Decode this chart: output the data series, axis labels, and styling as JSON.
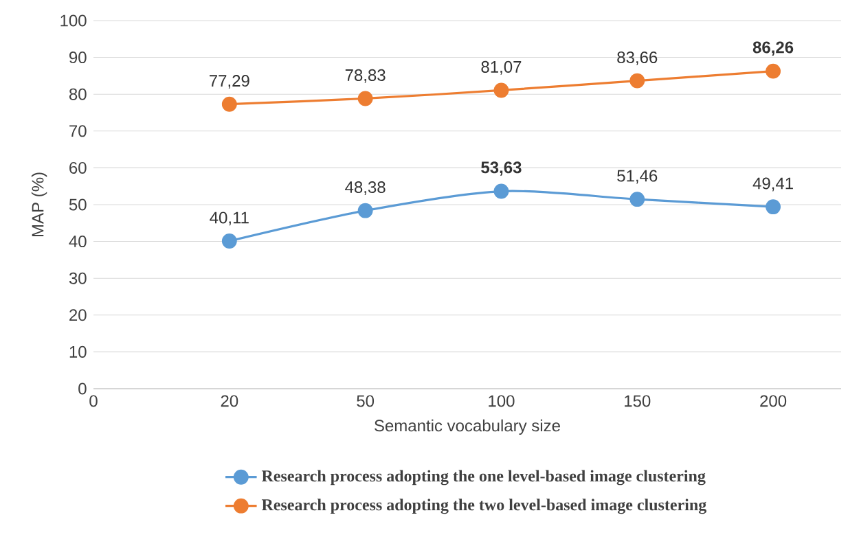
{
  "chart_data": {
    "type": "line",
    "xlabel": "Semantic vocabulary size",
    "ylabel": "MAP (%)",
    "categories": [
      "0",
      "20",
      "50",
      "100",
      "150",
      "200"
    ],
    "series": [
      {
        "name": "Research process adopting the one level-based image clustering",
        "color": "#5b9bd5",
        "values": [
          null,
          40.11,
          48.38,
          53.63,
          51.46,
          49.41
        ],
        "value_labels": [
          null,
          "40,11",
          "48,38",
          "**53,63**",
          "51,46",
          "49,41"
        ]
      },
      {
        "name": "Research process adopting the two level-based image clustering",
        "color": "#ed7d31",
        "values": [
          null,
          77.29,
          78.83,
          81.07,
          83.66,
          86.26
        ],
        "value_labels": [
          null,
          "77,29",
          "78,83",
          "81,07",
          "83,66",
          "**86,26**"
        ]
      }
    ],
    "ylim": [
      0,
      100
    ],
    "yticks": [
      0,
      10,
      20,
      30,
      40,
      50,
      60,
      70,
      80,
      90,
      100
    ],
    "grid": "y",
    "legend": "bottom",
    "marker": "circle",
    "line_style": "solid"
  }
}
